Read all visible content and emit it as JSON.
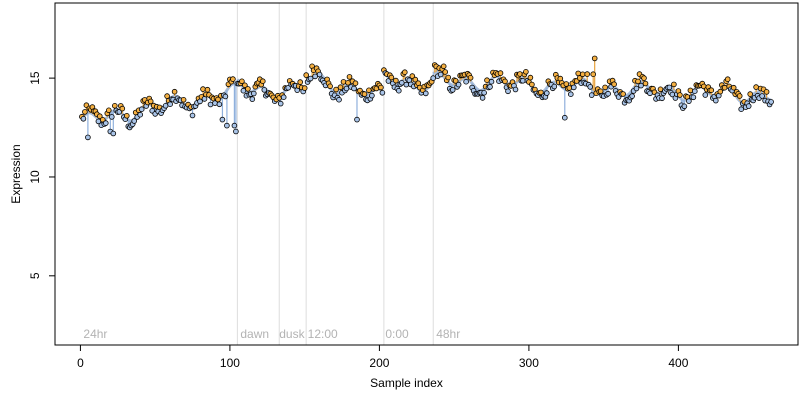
{
  "chart_data": {
    "type": "scatter",
    "title": "",
    "xlabel": "Sample index",
    "ylabel": "Expression",
    "xlim": [
      -17,
      480
    ],
    "ylim": [
      1.5,
      18.8
    ],
    "x_ticks": [
      0,
      100,
      200,
      300,
      400
    ],
    "y_ticks": [
      5,
      10,
      15
    ],
    "grid": false,
    "legend": "none",
    "colors": {
      "points_stroke": "#000000",
      "points_fill_up": "#f5b042",
      "points_fill_down": "#a9c4e8",
      "stem_up": "#e8a33d",
      "stem_down": "#8fb0dc",
      "trend": "#9fb6d6",
      "phase_line": "#dddddd",
      "phase_text": "#b3b3b3"
    },
    "phase_boundaries": [
      105,
      133,
      151,
      203,
      236
    ],
    "phase_labels": [
      {
        "x": 2,
        "label": "24hr"
      },
      {
        "x": 107,
        "label": "dawn"
      },
      {
        "x": 133,
        "label": "dusk"
      },
      {
        "x": 152,
        "label": "12:00"
      },
      {
        "x": 204,
        "label": "0:00"
      },
      {
        "x": 238,
        "label": "48hr"
      }
    ],
    "segments": [
      {
        "x0": 1,
        "x1": 104,
        "y0": 12.8,
        "y1": 14.3
      },
      {
        "x0": 105,
        "x1": 132,
        "y0": 14.6,
        "y1": 14.3
      },
      {
        "x0": 133,
        "x1": 150,
        "y0": 14.3,
        "y1": 14.4
      },
      {
        "x0": 151,
        "x1": 202,
        "y0": 15.1,
        "y1": 14.0
      },
      {
        "x0": 203,
        "x1": 235,
        "y0": 15.2,
        "y1": 14.5
      },
      {
        "x0": 236,
        "x1": 462,
        "y0": 14.9,
        "y1": 14.1
      }
    ],
    "anomalies": [
      {
        "x": 5,
        "y": 12.0
      },
      {
        "x": 7,
        "y": 13.4
      },
      {
        "x": 20,
        "y": 12.3
      },
      {
        "x": 22,
        "y": 12.2
      },
      {
        "x": 95,
        "y": 12.9
      },
      {
        "x": 98,
        "y": 12.6
      },
      {
        "x": 103,
        "y": 12.6
      },
      {
        "x": 104,
        "y": 12.3
      },
      {
        "x": 155,
        "y": 15.6
      },
      {
        "x": 158,
        "y": 15.5
      },
      {
        "x": 185,
        "y": 12.9
      },
      {
        "x": 243,
        "y": 15.6
      },
      {
        "x": 324,
        "y": 13.0
      },
      {
        "x": 344,
        "y": 16.0
      },
      {
        "x": 343,
        "y": 15.2
      }
    ]
  }
}
